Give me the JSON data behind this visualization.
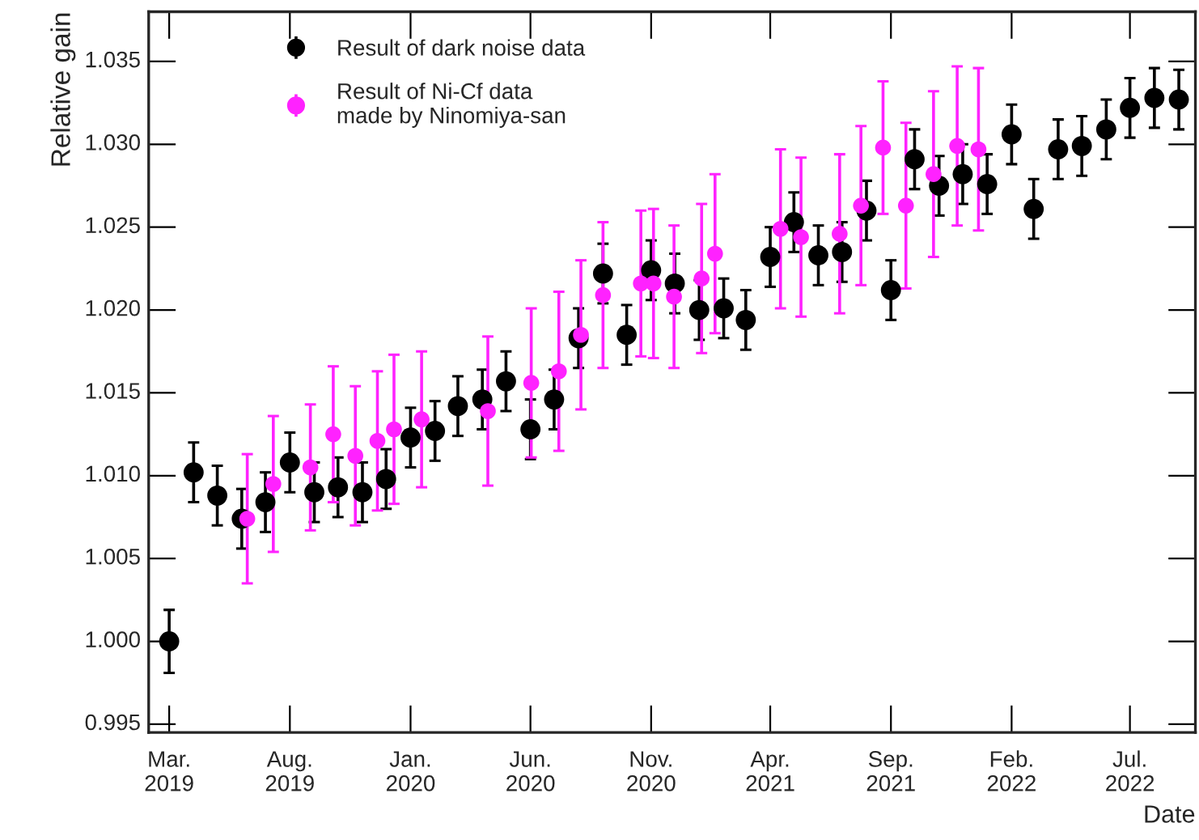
{
  "chart_data": {
    "type": "scatter",
    "xlabel": "Date",
    "ylabel": "Relative gain",
    "legend": "top left",
    "marker": "circle",
    "grid": false,
    "xlim": [
      "2019-02-03",
      "2022-09-22"
    ],
    "xticks": [
      {
        "value": "2019-03-01",
        "label": "Mar.\n2019"
      },
      {
        "value": "2019-08-01",
        "label": "Aug.\n2019"
      },
      {
        "value": "2020-01-01",
        "label": "Jan.\n2020"
      },
      {
        "value": "2020-06-01",
        "label": "Jun.\n2020"
      },
      {
        "value": "2020-11-01",
        "label": "Nov.\n2020"
      },
      {
        "value": "2021-04-01",
        "label": "Apr.\n2021"
      },
      {
        "value": "2021-09-01",
        "label": "Sep.\n2021"
      },
      {
        "value": "2022-02-01",
        "label": "Feb.\n2022"
      },
      {
        "value": "2022-07-01",
        "label": "Jul.\n2022"
      }
    ],
    "ylim": [
      0.9945,
      1.038
    ],
    "yticks": [
      {
        "value": 0.995,
        "label": "0.995"
      },
      {
        "value": 1.0,
        "label": "1.000"
      },
      {
        "value": 1.005,
        "label": "1.005"
      },
      {
        "value": 1.01,
        "label": "1.010"
      },
      {
        "value": 1.015,
        "label": "1.015"
      },
      {
        "value": 1.02,
        "label": "1.020"
      },
      {
        "value": 1.025,
        "label": "1.025"
      },
      {
        "value": 1.03,
        "label": "1.030"
      },
      {
        "value": 1.035,
        "label": "1.035"
      }
    ],
    "series": [
      {
        "name": "Result of dark noise data",
        "color": "#000000",
        "x": [
          "2019-03-01",
          "2019-04-01",
          "2019-05-01",
          "2019-06-01",
          "2019-07-01",
          "2019-08-01",
          "2019-09-01",
          "2019-10-01",
          "2019-11-01",
          "2019-12-01",
          "2020-01-01",
          "2020-02-01",
          "2020-03-01",
          "2020-04-01",
          "2020-05-01",
          "2020-06-01",
          "2020-07-01",
          "2020-08-01",
          "2020-09-01",
          "2020-10-01",
          "2020-11-01",
          "2020-12-01",
          "2021-01-01",
          "2021-02-01",
          "2021-03-01",
          "2021-04-01",
          "2021-05-01",
          "2021-06-01",
          "2021-07-01",
          "2021-08-01",
          "2021-09-01",
          "2021-10-01",
          "2021-11-01",
          "2021-12-01",
          "2022-01-01",
          "2022-02-01",
          "2022-03-01",
          "2022-04-01",
          "2022-05-01",
          "2022-06-01",
          "2022-07-01",
          "2022-08-01",
          "2022-09-01"
        ],
        "values": [
          1.0,
          1.0102,
          1.0088,
          1.0074,
          1.0084,
          1.0108,
          1.009,
          1.0093,
          1.009,
          1.0098,
          1.0123,
          1.0127,
          1.0142,
          1.0146,
          1.0157,
          1.0128,
          1.0146,
          1.0183,
          1.0222,
          1.0185,
          1.0224,
          1.0216,
          1.02,
          1.0201,
          1.0194,
          1.0232,
          1.0253,
          1.0233,
          1.0235,
          1.026,
          1.0212,
          1.0291,
          1.0275,
          1.0282,
          1.0276,
          1.0306,
          1.0261,
          1.0297,
          1.0299,
          1.0309,
          1.0322,
          1.0328,
          1.0327
        ],
        "errors": [
          0.0019,
          0.0018,
          0.0018,
          0.0018,
          0.0018,
          0.0018,
          0.0018,
          0.0018,
          0.0018,
          0.0018,
          0.0018,
          0.0018,
          0.0018,
          0.0018,
          0.0018,
          0.0018,
          0.0018,
          0.0018,
          0.0018,
          0.0018,
          0.0018,
          0.0018,
          0.0018,
          0.0018,
          0.0018,
          0.0018,
          0.0018,
          0.0018,
          0.0018,
          0.0018,
          0.0018,
          0.0018,
          0.0018,
          0.0018,
          0.0018,
          0.0018,
          0.0018,
          0.0018,
          0.0018,
          0.0018,
          0.0018,
          0.0018,
          0.0018
        ]
      },
      {
        "name": "Result of Ni-Cf data\nmade by Ninomiya-san",
        "color": "#ff22ff",
        "x": [
          "2019-06-08",
          "2019-07-11",
          "2019-08-27",
          "2019-09-25",
          "2019-10-23",
          "2019-11-20",
          "2019-12-11",
          "2020-01-15",
          "2020-04-08",
          "2020-06-02",
          "2020-07-07",
          "2020-08-04",
          "2020-09-01",
          "2020-10-19",
          "2020-11-04",
          "2020-11-30",
          "2021-01-04",
          "2021-01-21",
          "2021-04-14",
          "2021-05-10",
          "2021-06-28",
          "2021-07-25",
          "2021-08-22",
          "2021-09-20",
          "2021-10-25",
          "2021-11-24",
          "2021-12-21"
        ],
        "values": [
          1.0074,
          1.0095,
          1.0105,
          1.0125,
          1.0112,
          1.0121,
          1.0128,
          1.0134,
          1.0139,
          1.0156,
          1.0163,
          1.0185,
          1.0209,
          1.0216,
          1.0216,
          1.0208,
          1.0219,
          1.0234,
          1.0249,
          1.0244,
          1.0246,
          1.0263,
          1.0298,
          1.0263,
          1.0282,
          1.0299,
          1.0297
        ],
        "errors": [
          0.0039,
          0.0041,
          0.0038,
          0.0041,
          0.0042,
          0.0042,
          0.0045,
          0.0041,
          0.0045,
          0.0045,
          0.0048,
          0.0045,
          0.0044,
          0.0044,
          0.0045,
          0.0043,
          0.0045,
          0.0048,
          0.0048,
          0.0048,
          0.0048,
          0.0048,
          0.004,
          0.005,
          0.005,
          0.0048,
          0.0049
        ]
      }
    ]
  }
}
